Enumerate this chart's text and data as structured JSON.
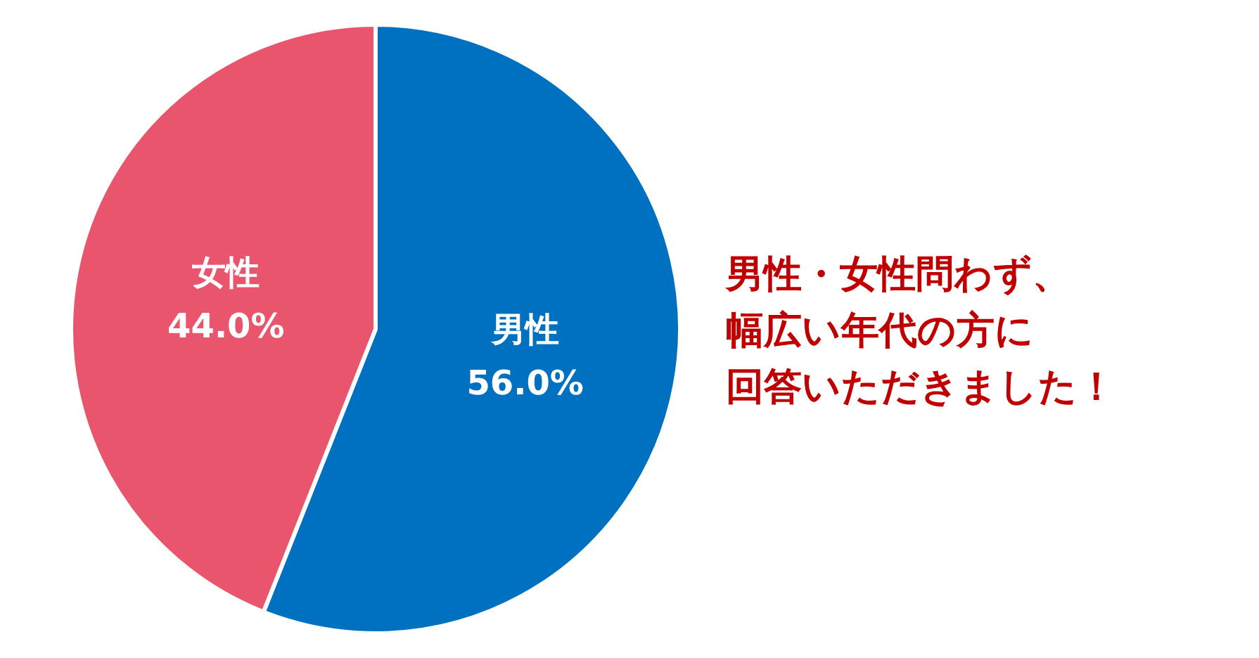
{
  "chart_data": {
    "type": "pie",
    "categories": [
      "男性",
      "女性"
    ],
    "values": [
      56.0,
      44.0
    ],
    "value_labels": [
      "56.0%",
      "44.0%"
    ],
    "colors": [
      "#0070c0",
      "#e8556d"
    ],
    "legend": false,
    "annotations": [
      "男性・女性問わず、",
      "幅広い年代の方に",
      "回答いただきました！"
    ]
  }
}
